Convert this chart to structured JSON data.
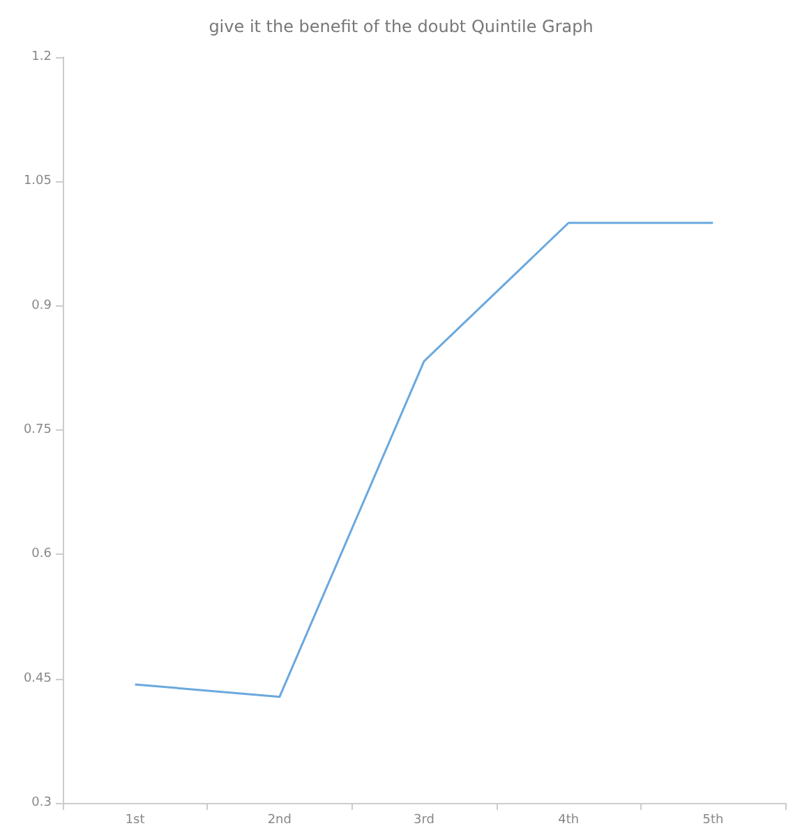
{
  "chart_data": {
    "type": "line",
    "title": "give it the benefit of the doubt Quintile Graph",
    "categories": [
      "1st",
      "2nd",
      "3rd",
      "4th",
      "5th"
    ],
    "series": [
      {
        "color": "#6aa8de",
        "values": [
          0.443,
          0.428,
          0.833,
          1.0,
          1.0
        ]
      }
    ],
    "ylim": [
      0.3,
      1.2
    ],
    "yticks": [
      0.3,
      0.45,
      0.6,
      0.75,
      0.9,
      1.05,
      1.2
    ],
    "grid": false,
    "marker": "none",
    "line_style": "solid"
  }
}
